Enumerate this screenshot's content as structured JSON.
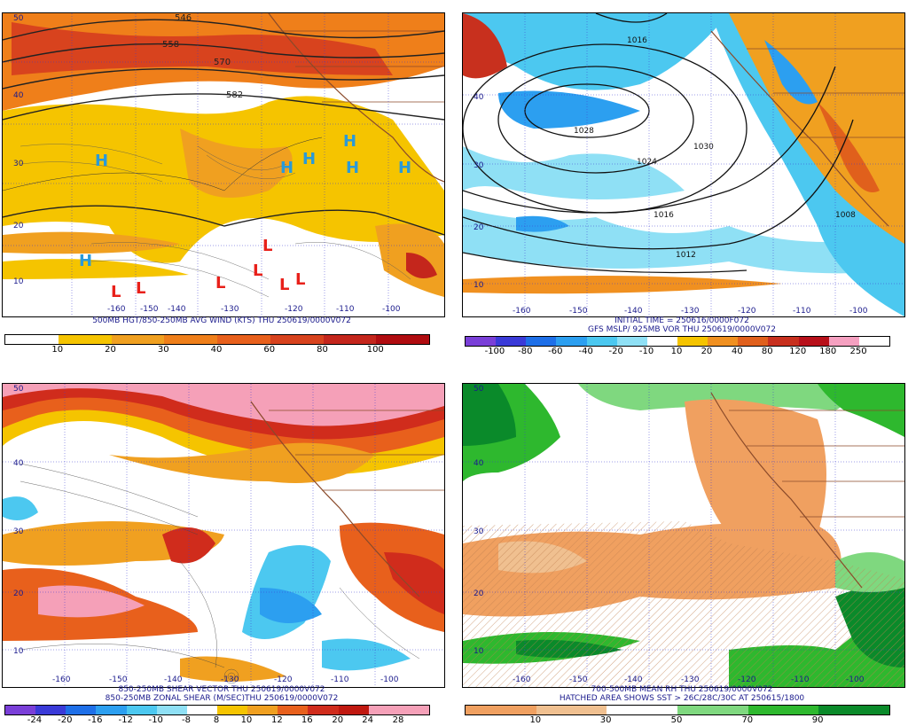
{
  "panels": [
    {
      "caption1": "500MB HGT/850-250MB AVG WIND (KTS) THU 250619/0000V072",
      "caption2": "",
      "colorbar_labels": [
        "10",
        "20",
        "30",
        "40",
        "60",
        "80",
        "100"
      ],
      "colors": [
        "#ffffff",
        "#f5c400",
        "#f0a020",
        "#ef7f1a",
        "#e8601c",
        "#d8431e",
        "#c4261c",
        "#b00c10"
      ],
      "lat_labels": [
        "50",
        "40",
        "30",
        "20",
        "10"
      ],
      "lon_labels": [
        "-160",
        "-150",
        "-140",
        "-130",
        "-120",
        "-110",
        "-100"
      ],
      "contour_labels": [
        "546",
        "558",
        "570",
        "582"
      ],
      "highs": [
        "H",
        "H",
        "H",
        "H",
        "H",
        "H",
        "H"
      ],
      "lows": [
        "L",
        "L",
        "L",
        "L",
        "L",
        "L",
        "L"
      ]
    },
    {
      "caption1": "INITIAL TIME = 250616/0000F072",
      "caption2": "GFS MSLP/ 925MB VOR THU 250619/0000V072",
      "colorbar_labels": [
        "-100",
        "-80",
        "-60",
        "-40",
        "-20",
        "-10",
        "10",
        "20",
        "40",
        "80",
        "120",
        "180",
        "250"
      ],
      "colors": [
        "#7a3fd8",
        "#3a3ad8",
        "#1e6fe8",
        "#2c9ff0",
        "#4cc8f0",
        "#8fe0f5",
        "#ffffff",
        "#f5c400",
        "#f09020",
        "#e0601c",
        "#c8301e",
        "#b8101a",
        "#f5a0c0"
      ],
      "lat_labels": [
        "40",
        "30",
        "20",
        "10"
      ],
      "lon_labels": [
        "-160",
        "-150",
        "-140",
        "-130",
        "-120",
        "-110",
        "-100"
      ],
      "contour_labels": [
        "1016",
        "1028",
        "1030",
        "1024",
        "1016",
        "1012",
        "1008"
      ]
    },
    {
      "caption1": "850-250MB SHEAR VECTOR THU 250619/0000V072",
      "caption2": "850-250MB ZONAL SHEAR (M/SEC)THU 250619/0000V072",
      "colorbar_labels": [
        "-24",
        "-20",
        "-16",
        "-12",
        "-10",
        "-8",
        "8",
        "10",
        "12",
        "16",
        "20",
        "24",
        "28"
      ],
      "colors": [
        "#7a3fd8",
        "#3a3ad8",
        "#1e6fe8",
        "#2c9ff0",
        "#4cc8f0",
        "#8fe0f5",
        "#ffffff",
        "#f5c400",
        "#f0a020",
        "#e8601c",
        "#d02c1c",
        "#c01810",
        "#f5a0b8"
      ],
      "lat_labels": [
        "50",
        "40",
        "30",
        "20",
        "10"
      ],
      "lon_labels": [
        "-160",
        "-150",
        "-140",
        "-130",
        "-120",
        "-110",
        "-100"
      ]
    },
    {
      "caption1": "700-500MB MEAN RH THU 250619/0000V072",
      "caption2": "HATCHED AREA SHOWS SST > 26C/28C/30C AT 250615/1800",
      "colorbar_labels": [
        "10",
        "30",
        "50",
        "70",
        "90"
      ],
      "colors": [
        "#f0a060",
        "#f0c090",
        "#ffffff",
        "#7fd87f",
        "#2eb82e",
        "#0a8a2a"
      ],
      "lat_labels": [
        "50",
        "40",
        "30",
        "20",
        "10"
      ],
      "lon_labels": [
        "-160",
        "-150",
        "-140",
        "-130",
        "-120",
        "-110",
        "-100"
      ]
    }
  ]
}
